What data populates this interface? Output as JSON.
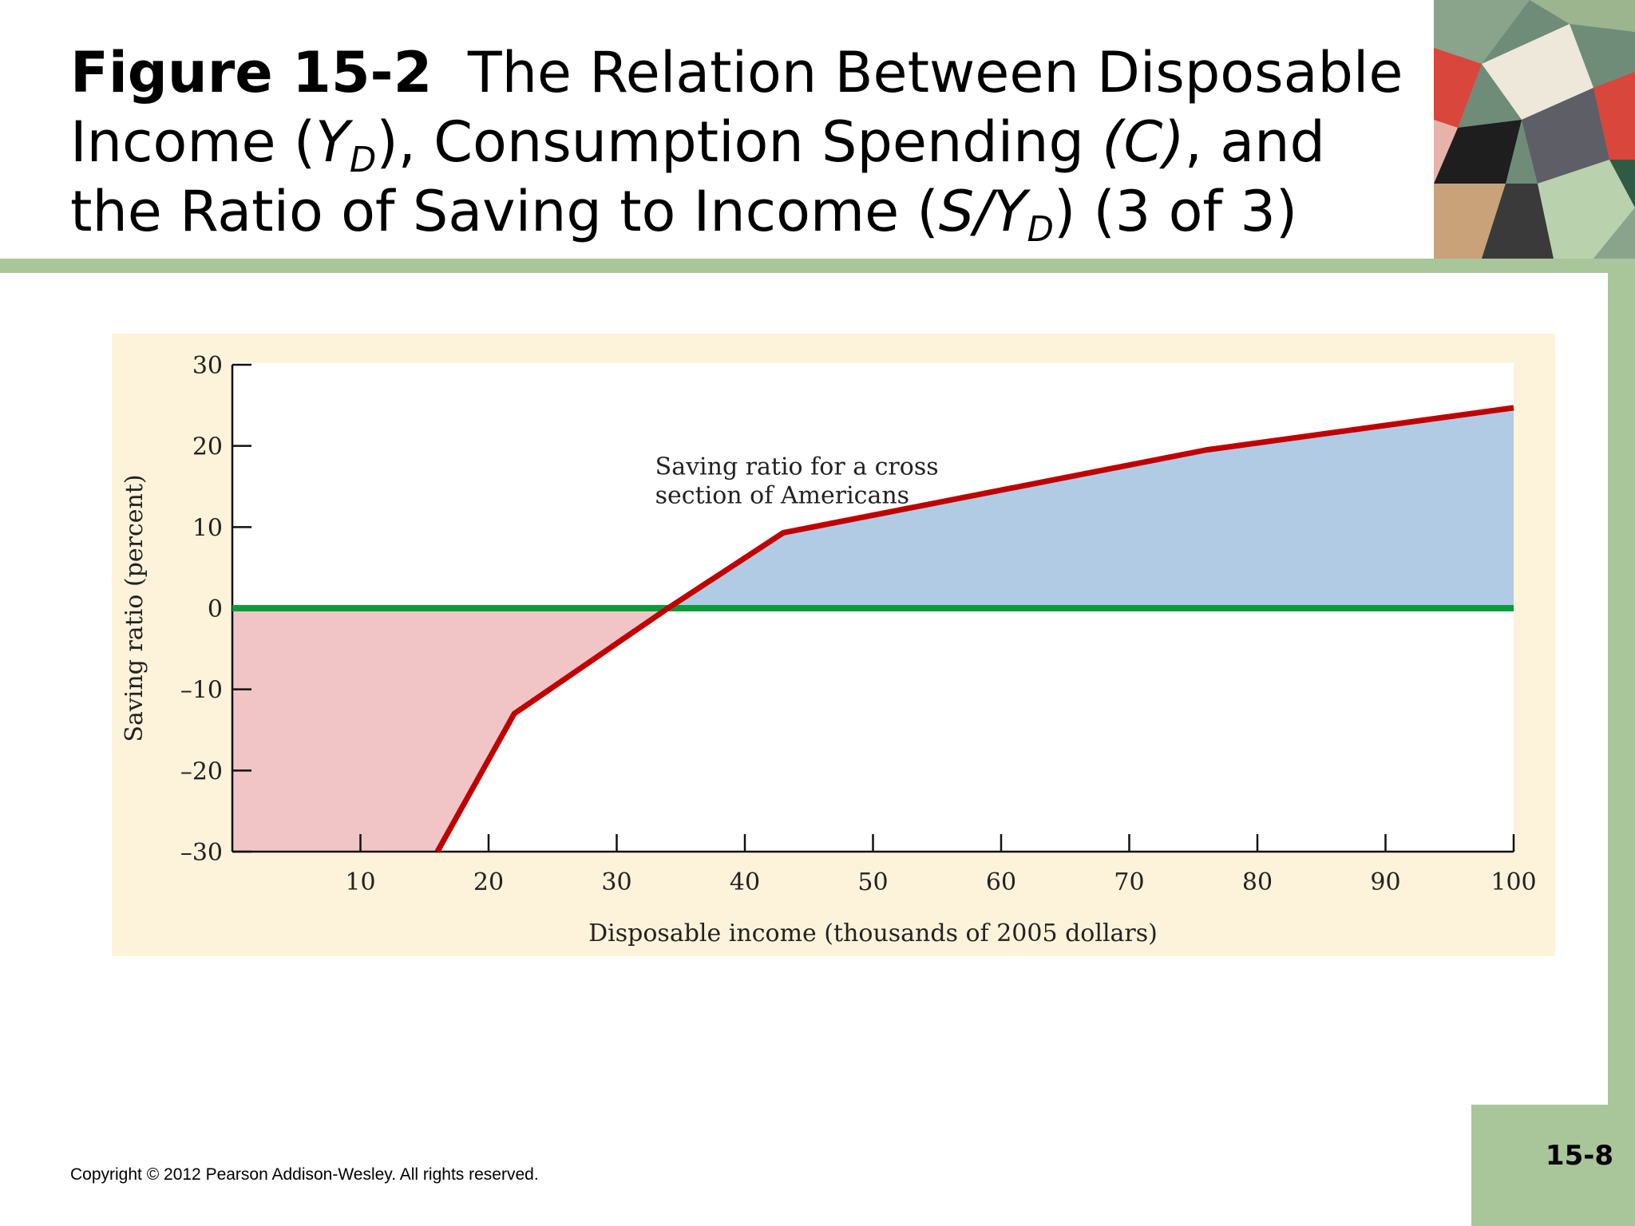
{
  "slide": {
    "title_bold": "Figure 15-2",
    "title_l1_rest": "The Relation Between Disposable",
    "title_l2_a": "Income (",
    "title_l2_yd": "Y",
    "title_l2_yd_sub": "D",
    "title_l2_b": "), Consumption Spending ",
    "title_l2_c": "(C)",
    "title_l2_d": ", and",
    "title_l3_a": "the Ratio of Saving to Income (",
    "title_l3_s": "S/Y",
    "title_l3_sub": "D",
    "title_l3_b": ") (3 of 3)",
    "copyright": "Copyright © 2012 Pearson Addison-Wesley. All rights reserved.",
    "page_number": "15-8"
  },
  "colors": {
    "panel_bg": "#fdf3da",
    "saving_line": "#c00000",
    "zero_line": "#0a9b3a",
    "positive_fill": "#b2cbe4",
    "negative_fill": "#f1c5c6",
    "accent_green": "#a9c59a"
  },
  "chart_data": {
    "type": "line",
    "title": "",
    "xlabel": "Disposable income (thousands of 2005 dollars)",
    "ylabel": "Saving ratio (percent)",
    "xlim": [
      0,
      100
    ],
    "ylim": [
      -30,
      30
    ],
    "x_ticks": [
      10,
      20,
      30,
      40,
      50,
      60,
      70,
      80,
      90,
      100
    ],
    "x_tick_labels": [
      "10",
      "20",
      "30",
      "40",
      "50",
      "60",
      "70",
      "80",
      "90",
      "100"
    ],
    "y_ticks": [
      30,
      20,
      10,
      0,
      -10,
      -20,
      -30
    ],
    "y_tick_labels": [
      "30",
      "20",
      "10",
      "0",
      "–10",
      "–20",
      "–30"
    ],
    "grid": false,
    "annotation": {
      "lines": [
        "Saving ratio for a cross",
        "section of Americans"
      ],
      "x": 33,
      "y": 16.5
    },
    "series": [
      {
        "x": [
          16,
          22,
          34,
          43,
          76,
          100
        ],
        "y": [
          -30,
          -13,
          0,
          9.3,
          19.5,
          24.7
        ]
      }
    ],
    "reference_line": {
      "y": 0
    }
  }
}
